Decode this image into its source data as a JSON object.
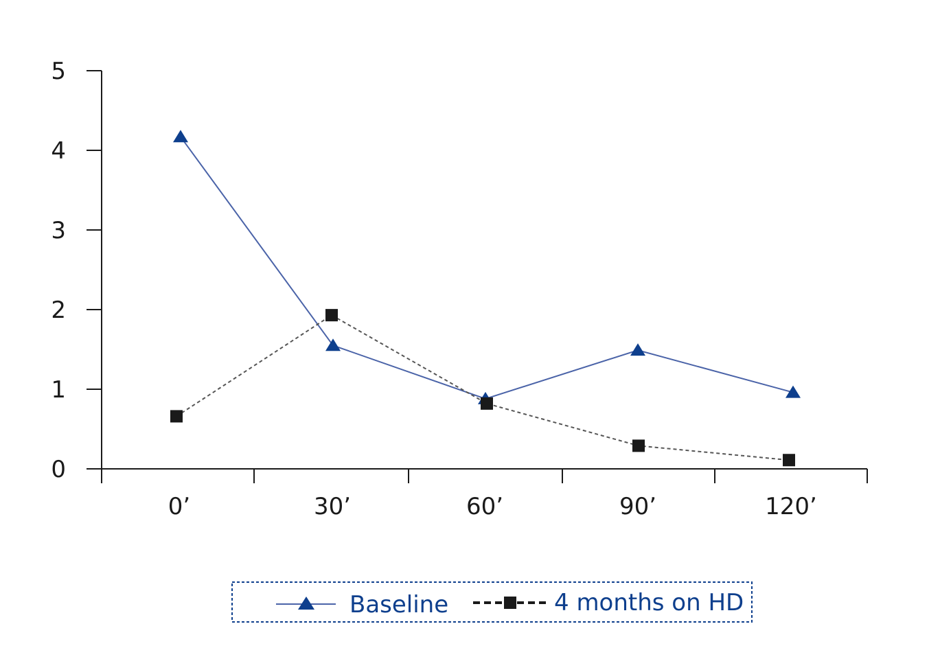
{
  "chart_data": {
    "type": "line",
    "title": "",
    "xlabel": "",
    "ylabel": "",
    "categories": [
      "0’",
      "30’",
      "60’",
      "90’",
      "120’"
    ],
    "yticks": [
      "0",
      "1",
      "2",
      "3",
      "4",
      "5"
    ],
    "ylim": [
      0,
      5
    ],
    "grid": false,
    "legend_position": "bottom-center",
    "series": [
      {
        "name": "Baseline",
        "values": [
          4.17,
          1.55,
          0.88,
          1.49,
          0.96
        ],
        "color": "#0e3f8d",
        "line_color": "#4a63a8",
        "line_style": "solid",
        "marker": "triangle"
      },
      {
        "name": "4 months on HD",
        "values": [
          0.66,
          1.93,
          0.82,
          0.29,
          0.11
        ],
        "color": "#1a1a1a",
        "line_color": "#555555",
        "line_style": "dashed",
        "marker": "square"
      }
    ]
  },
  "colors": {
    "axis": "#1a1a1a",
    "legend_text": "#0e3f8d",
    "legend_border": "#0e3f8d"
  }
}
